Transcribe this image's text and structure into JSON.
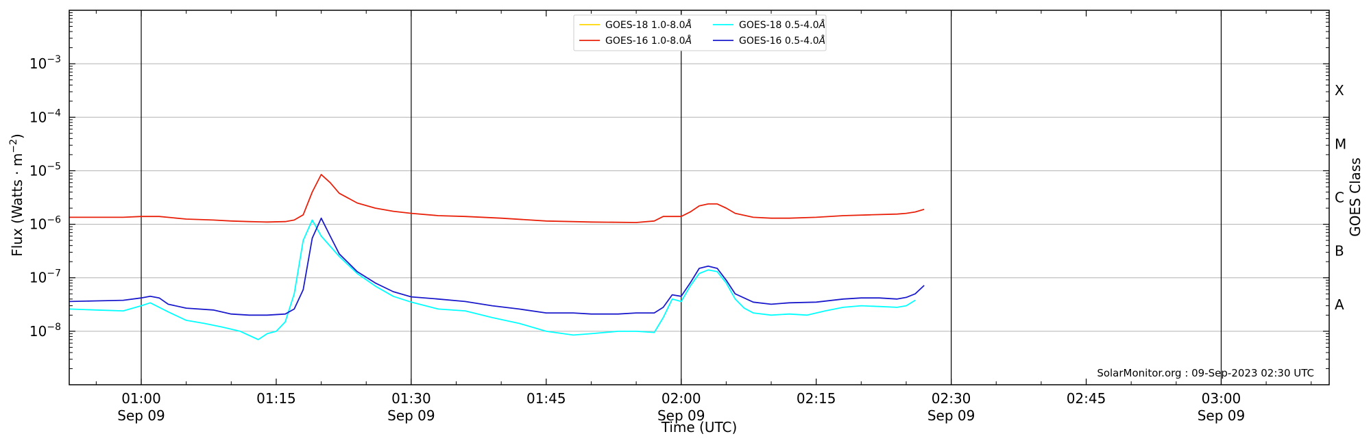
{
  "chart_data": {
    "type": "line",
    "title": "",
    "xlabel": "Time (UTC)",
    "ylabel": "Flux (Watts · m",
    "ylabel_exponent": "−2",
    "ylabel_suffix": ")",
    "y2label": "GOES Class",
    "y_scale": "log",
    "ylim": [
      1e-09,
      0.01
    ],
    "xlim": [
      "00:52",
      "03:12"
    ],
    "grid": "horizontal at each decade",
    "legend_position": "top-center",
    "annotation": "SolarMonitor.org : 09-Sep-2023 02:30 UTC",
    "y_ticks": [
      {
        "value": 1e-08,
        "base": "10",
        "exp": "−8"
      },
      {
        "value": 1e-07,
        "base": "10",
        "exp": "−7"
      },
      {
        "value": 1e-06,
        "base": "10",
        "exp": "−6"
      },
      {
        "value": 1e-05,
        "base": "10",
        "exp": "−5"
      },
      {
        "value": 0.0001,
        "base": "10",
        "exp": "−4"
      },
      {
        "value": 0.001,
        "base": "10",
        "exp": "−3"
      }
    ],
    "class_labels": [
      {
        "label": "A",
        "value": 3.16e-08
      },
      {
        "label": "B",
        "value": 3.16e-07
      },
      {
        "label": "C",
        "value": 3.16e-06
      },
      {
        "label": "M",
        "value": 3.16e-05
      },
      {
        "label": "X",
        "value": 0.000316
      }
    ],
    "x_ticks": [
      {
        "time": "01:00",
        "label": "01:00",
        "date": "Sep 09",
        "vline": true
      },
      {
        "time": "01:15",
        "label": "01:15",
        "date": "",
        "vline": false
      },
      {
        "time": "01:30",
        "label": "01:30",
        "date": "Sep 09",
        "vline": true
      },
      {
        "time": "01:45",
        "label": "01:45",
        "date": "",
        "vline": false
      },
      {
        "time": "02:00",
        "label": "02:00",
        "date": "Sep 09",
        "vline": true
      },
      {
        "time": "02:15",
        "label": "02:15",
        "date": "",
        "vline": false
      },
      {
        "time": "02:30",
        "label": "02:30",
        "date": "Sep 09",
        "vline": true
      },
      {
        "time": "02:45",
        "label": "02:45",
        "date": "",
        "vline": false
      },
      {
        "time": "03:00",
        "label": "03:00",
        "date": "Sep 09",
        "vline": true
      }
    ],
    "series": [
      {
        "name": "GOES-18 1.0-8.0",
        "color": "#ffd700",
        "x": [],
        "values": []
      },
      {
        "name": "GOES-16 1.0-8.0",
        "color": "#e8200a",
        "x": [
          "00:52",
          "00:55",
          "00:58",
          "01:00",
          "01:02",
          "01:05",
          "01:08",
          "01:10",
          "01:12",
          "01:14",
          "01:16",
          "01:17",
          "01:18",
          "01:19",
          "01:20",
          "01:21",
          "01:22",
          "01:24",
          "01:26",
          "01:28",
          "01:30",
          "01:33",
          "01:36",
          "01:40",
          "01:45",
          "01:50",
          "01:55",
          "01:57",
          "01:58",
          "01:59",
          "02:00",
          "02:01",
          "02:02",
          "02:03",
          "02:04",
          "02:05",
          "02:06",
          "02:08",
          "02:10",
          "02:12",
          "02:15",
          "02:18",
          "02:21",
          "02:24",
          "02:25",
          "02:26",
          "02:27"
        ],
        "values": [
          1.35e-06,
          1.35e-06,
          1.35e-06,
          1.4e-06,
          1.4e-06,
          1.25e-06,
          1.2e-06,
          1.15e-06,
          1.12e-06,
          1.1e-06,
          1.12e-06,
          1.2e-06,
          1.5e-06,
          4e-06,
          8.5e-06,
          6e-06,
          3.8e-06,
          2.5e-06,
          2e-06,
          1.75e-06,
          1.6e-06,
          1.45e-06,
          1.4e-06,
          1.3e-06,
          1.15e-06,
          1.1e-06,
          1.08e-06,
          1.15e-06,
          1.4e-06,
          1.4e-06,
          1.4e-06,
          1.7e-06,
          2.2e-06,
          2.4e-06,
          2.4e-06,
          2e-06,
          1.6e-06,
          1.35e-06,
          1.3e-06,
          1.3e-06,
          1.35e-06,
          1.45e-06,
          1.5e-06,
          1.55e-06,
          1.6e-06,
          1.7e-06,
          1.9e-06
        ]
      },
      {
        "name": "GOES-18 0.5-4.0",
        "color": "#00ffff",
        "x": [
          "00:52",
          "00:55",
          "00:58",
          "01:00",
          "01:01",
          "01:03",
          "01:05",
          "01:07",
          "01:09",
          "01:11",
          "01:13",
          "01:14",
          "01:15",
          "01:16",
          "01:17",
          "01:18",
          "01:19",
          "01:20",
          "01:22",
          "01:24",
          "01:26",
          "01:28",
          "01:30",
          "01:33",
          "01:36",
          "01:39",
          "01:42",
          "01:45",
          "01:48",
          "01:50",
          "01:53",
          "01:55",
          "01:57",
          "01:58",
          "01:59",
          "02:00",
          "02:01",
          "02:02",
          "02:03",
          "02:04",
          "02:05",
          "02:06",
          "02:07",
          "02:08",
          "02:10",
          "02:12",
          "02:14",
          "02:16",
          "02:18",
          "02:20",
          "02:22",
          "02:24",
          "02:25",
          "02:26"
        ],
        "values": [
          2.6e-08,
          2.5e-08,
          2.4e-08,
          3e-08,
          3.4e-08,
          2.3e-08,
          1.6e-08,
          1.4e-08,
          1.2e-08,
          1e-08,
          7e-09,
          9e-09,
          1e-08,
          1.5e-08,
          5e-08,
          5e-07,
          1.2e-06,
          6e-07,
          2.5e-07,
          1.2e-07,
          7e-08,
          4.5e-08,
          3.5e-08,
          2.6e-08,
          2.4e-08,
          1.8e-08,
          1.4e-08,
          1e-08,
          8.5e-09,
          9e-09,
          1e-08,
          1e-08,
          9.5e-09,
          1.8e-08,
          4e-08,
          3.6e-08,
          7e-08,
          1.2e-07,
          1.4e-07,
          1.3e-07,
          8e-08,
          4e-08,
          2.7e-08,
          2.2e-08,
          2e-08,
          2.1e-08,
          2e-08,
          2.4e-08,
          2.8e-08,
          3e-08,
          2.9e-08,
          2.8e-08,
          3e-08,
          3.8e-08
        ]
      },
      {
        "name": "GOES-16 0.5-4.0",
        "color": "#1a1acc",
        "x": [
          "00:52",
          "00:55",
          "00:58",
          "01:00",
          "01:01",
          "01:02",
          "01:03",
          "01:05",
          "01:08",
          "01:10",
          "01:12",
          "01:14",
          "01:16",
          "01:17",
          "01:18",
          "01:19",
          "01:20",
          "01:21",
          "01:22",
          "01:24",
          "01:26",
          "01:28",
          "01:30",
          "01:33",
          "01:36",
          "01:39",
          "01:42",
          "01:45",
          "01:48",
          "01:50",
          "01:53",
          "01:55",
          "01:57",
          "01:58",
          "01:59",
          "02:00",
          "02:01",
          "02:02",
          "02:03",
          "02:04",
          "02:05",
          "02:06",
          "02:08",
          "02:10",
          "02:12",
          "02:15",
          "02:18",
          "02:20",
          "02:22",
          "02:24",
          "02:25",
          "02:26",
          "02:27"
        ],
        "values": [
          3.6e-08,
          3.7e-08,
          3.8e-08,
          4.2e-08,
          4.5e-08,
          4.2e-08,
          3.2e-08,
          2.7e-08,
          2.5e-08,
          2.1e-08,
          2e-08,
          2e-08,
          2.1e-08,
          2.6e-08,
          6e-08,
          5.5e-07,
          1.3e-06,
          6e-07,
          2.8e-07,
          1.3e-07,
          8e-08,
          5.5e-08,
          4.4e-08,
          4e-08,
          3.6e-08,
          3e-08,
          2.6e-08,
          2.2e-08,
          2.2e-08,
          2.1e-08,
          2.1e-08,
          2.2e-08,
          2.2e-08,
          2.8e-08,
          4.8e-08,
          4.5e-08,
          8e-08,
          1.5e-07,
          1.65e-07,
          1.5e-07,
          9e-08,
          5e-08,
          3.5e-08,
          3.2e-08,
          3.4e-08,
          3.5e-08,
          4e-08,
          4.2e-08,
          4.2e-08,
          4e-08,
          4.3e-08,
          5e-08,
          7.2e-08
        ]
      }
    ]
  }
}
